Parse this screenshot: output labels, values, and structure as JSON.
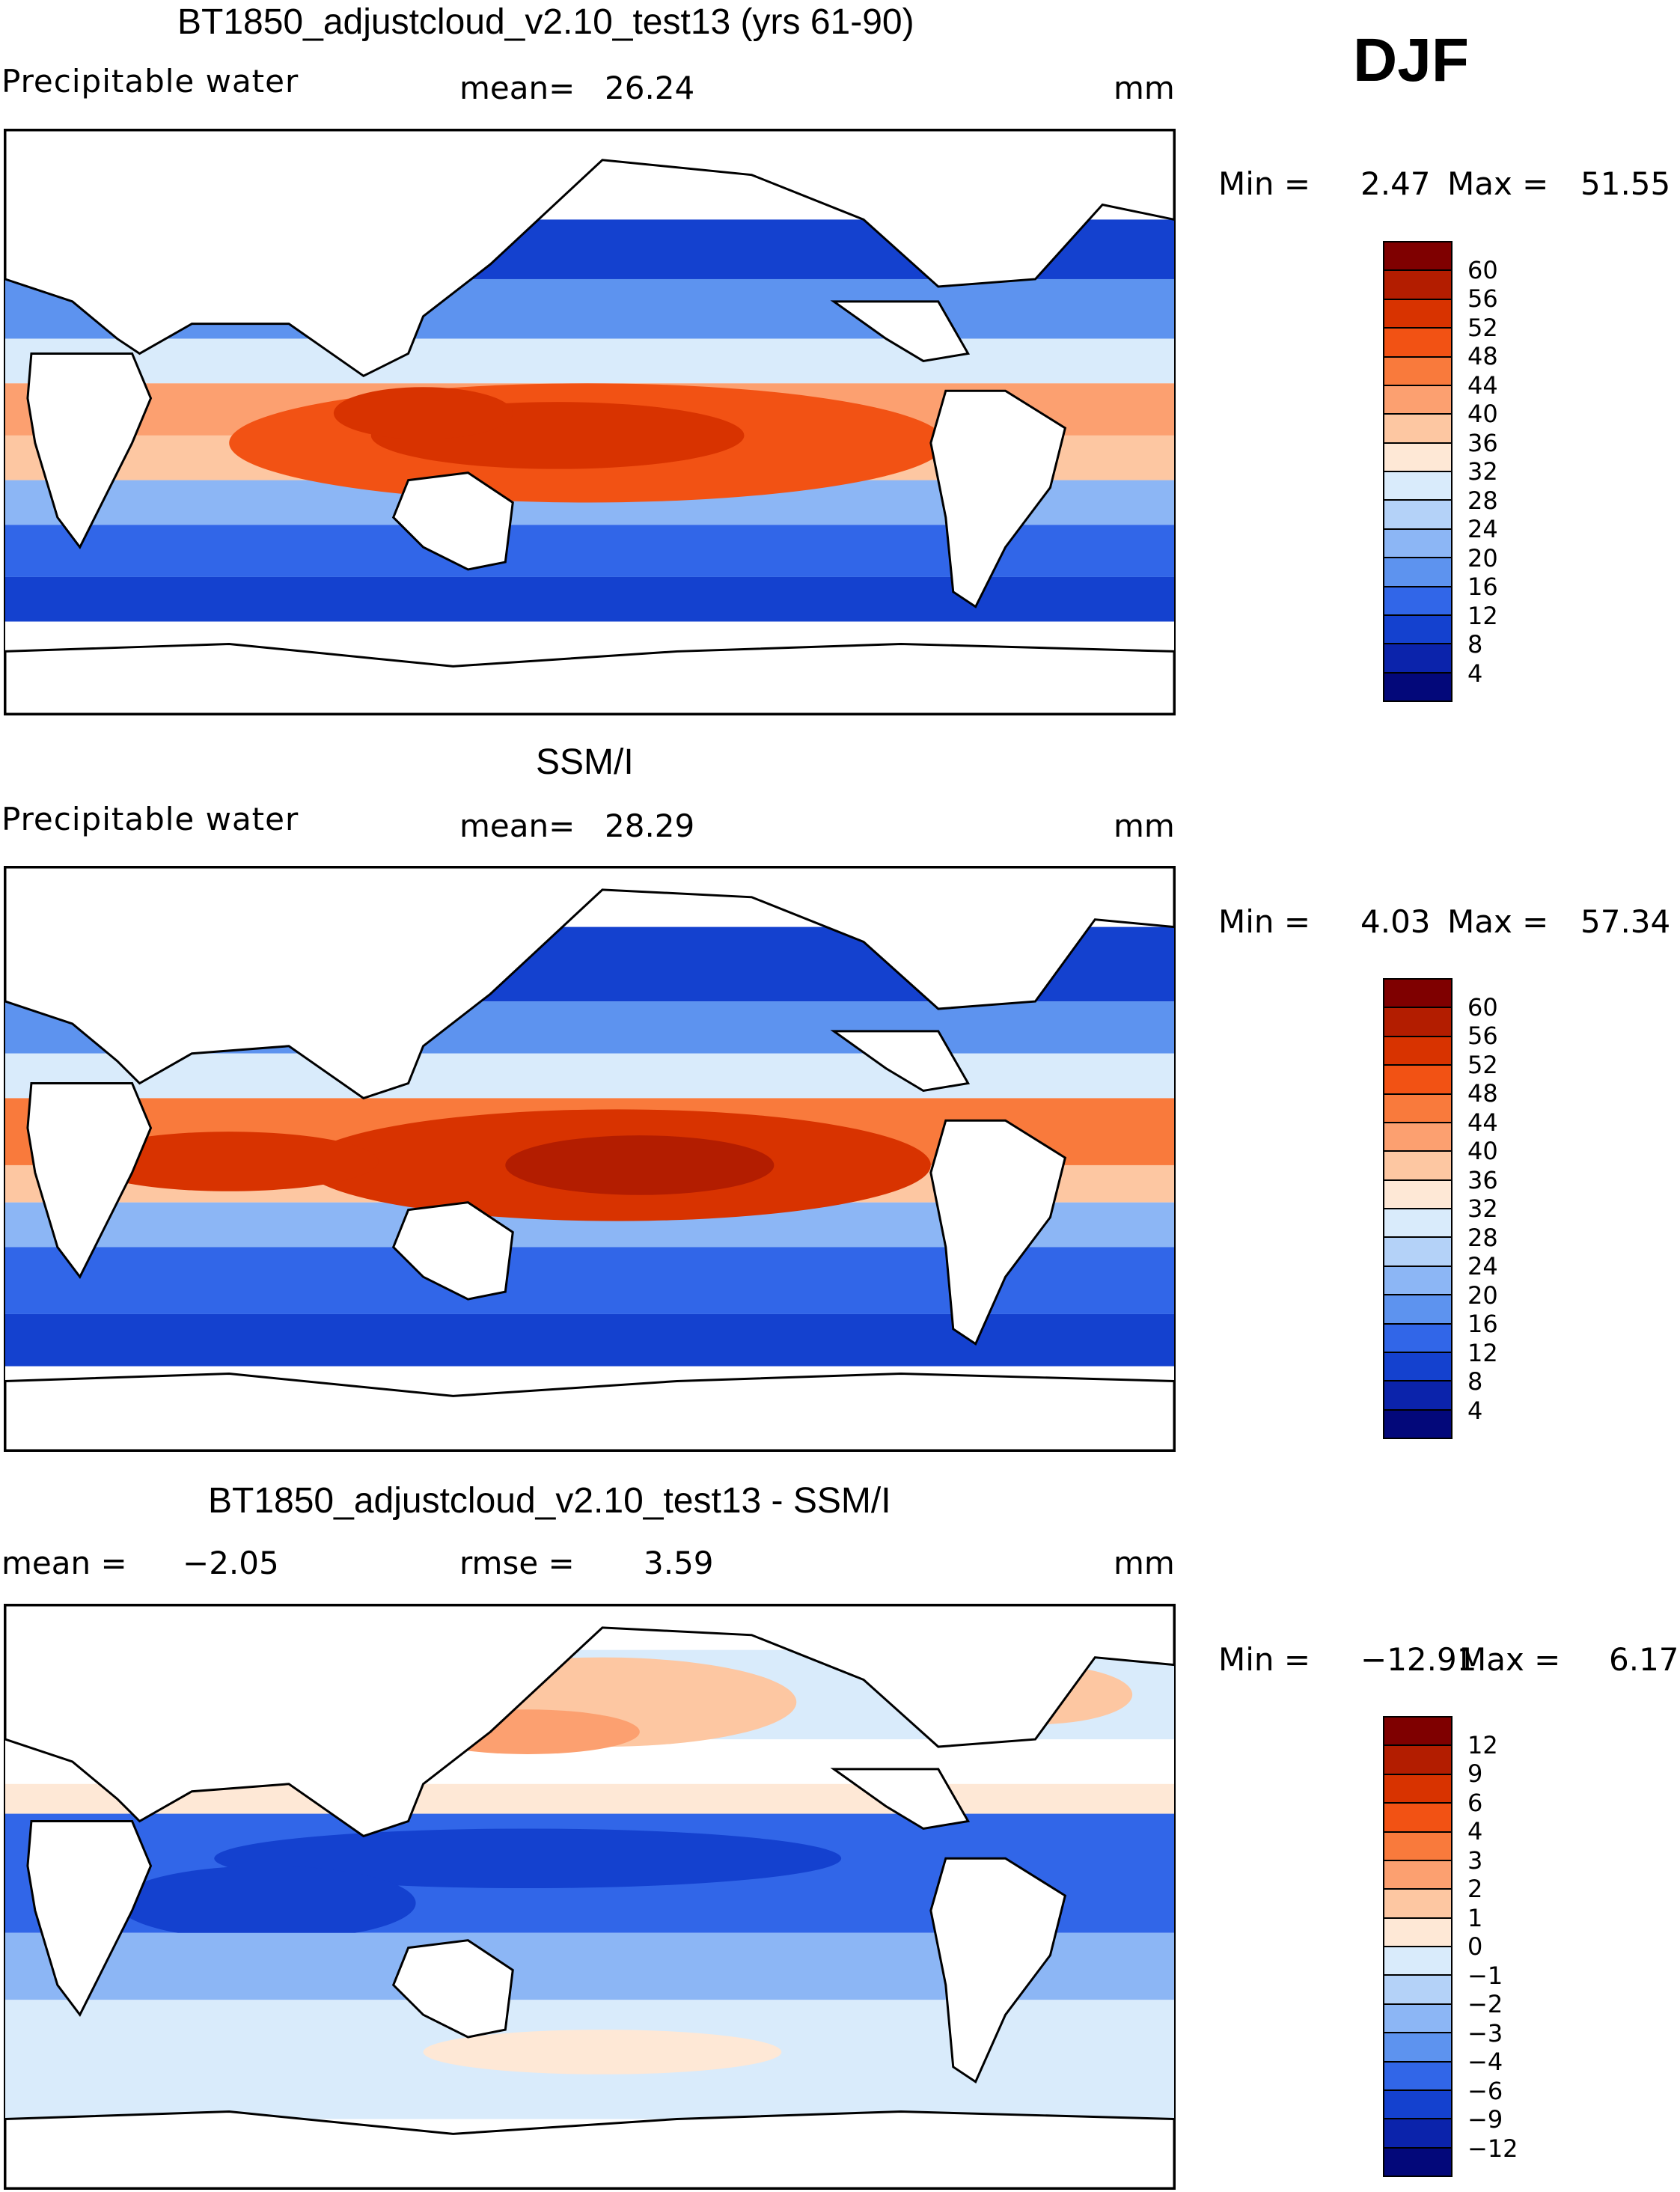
{
  "season": "DJF",
  "units": "mm",
  "panels": [
    {
      "id": "model",
      "title": "BT1850_adjustcloud_v2.10_test13 (yrs 61-90)",
      "variable": "Precipitable water",
      "stat1_label": "mean=",
      "stat1_value": "26.24",
      "units": "mm",
      "min_label": "Min =",
      "min_value": "2.47",
      "max_label": "Max =",
      "max_value": "51.55",
      "levels": [
        "60",
        "56",
        "52",
        "48",
        "44",
        "40",
        "36",
        "32",
        "28",
        "24",
        "20",
        "16",
        "12",
        "8",
        "4"
      ],
      "colors": [
        "#7f0000",
        "#b31d00",
        "#d83300",
        "#f25214",
        "#f97a3c",
        "#fca070",
        "#fdc7a2",
        "#fee8d6",
        "#d9ebfb",
        "#b4d2f8",
        "#8cb6f5",
        "#5d93ef",
        "#3166e8",
        "#1441cf",
        "#0b23ab",
        "#03087a"
      ]
    },
    {
      "id": "obs",
      "title": "SSM/I",
      "variable": "Precipitable water",
      "stat1_label": "mean=",
      "stat1_value": "28.29",
      "units": "mm",
      "min_label": "Min =",
      "min_value": "4.03",
      "max_label": "Max =",
      "max_value": "57.34",
      "levels": [
        "60",
        "56",
        "52",
        "48",
        "44",
        "40",
        "36",
        "32",
        "28",
        "24",
        "20",
        "16",
        "12",
        "8",
        "4"
      ],
      "colors": [
        "#7f0000",
        "#b31d00",
        "#d83300",
        "#f25214",
        "#f97a3c",
        "#fca070",
        "#fdc7a2",
        "#fee8d6",
        "#d9ebfb",
        "#b4d2f8",
        "#8cb6f5",
        "#5d93ef",
        "#3166e8",
        "#1441cf",
        "#0b23ab",
        "#03087a"
      ]
    },
    {
      "id": "diff",
      "title": "BT1850_adjustcloud_v2.10_test13 - SSM/I",
      "stat1_label": "mean =",
      "stat1_value": "−2.05",
      "stat2_label": "rmse =",
      "stat2_value": "3.59",
      "units": "mm",
      "min_label": "Min =",
      "min_value": "−12.91",
      "max_label": "Max =",
      "max_value": "6.17",
      "levels": [
        "12",
        "9",
        "6",
        "4",
        "3",
        "2",
        "1",
        "0",
        "−1",
        "−2",
        "−3",
        "−4",
        "−6",
        "−9",
        "−12"
      ],
      "colors": [
        "#7f0000",
        "#b31d00",
        "#d83300",
        "#f25214",
        "#f97a3c",
        "#fca070",
        "#fdc7a2",
        "#fee8d6",
        "#d9ebfb",
        "#b4d2f8",
        "#8cb6f5",
        "#5d93ef",
        "#3166e8",
        "#1441cf",
        "#0b23ab",
        "#03087a"
      ]
    }
  ]
}
